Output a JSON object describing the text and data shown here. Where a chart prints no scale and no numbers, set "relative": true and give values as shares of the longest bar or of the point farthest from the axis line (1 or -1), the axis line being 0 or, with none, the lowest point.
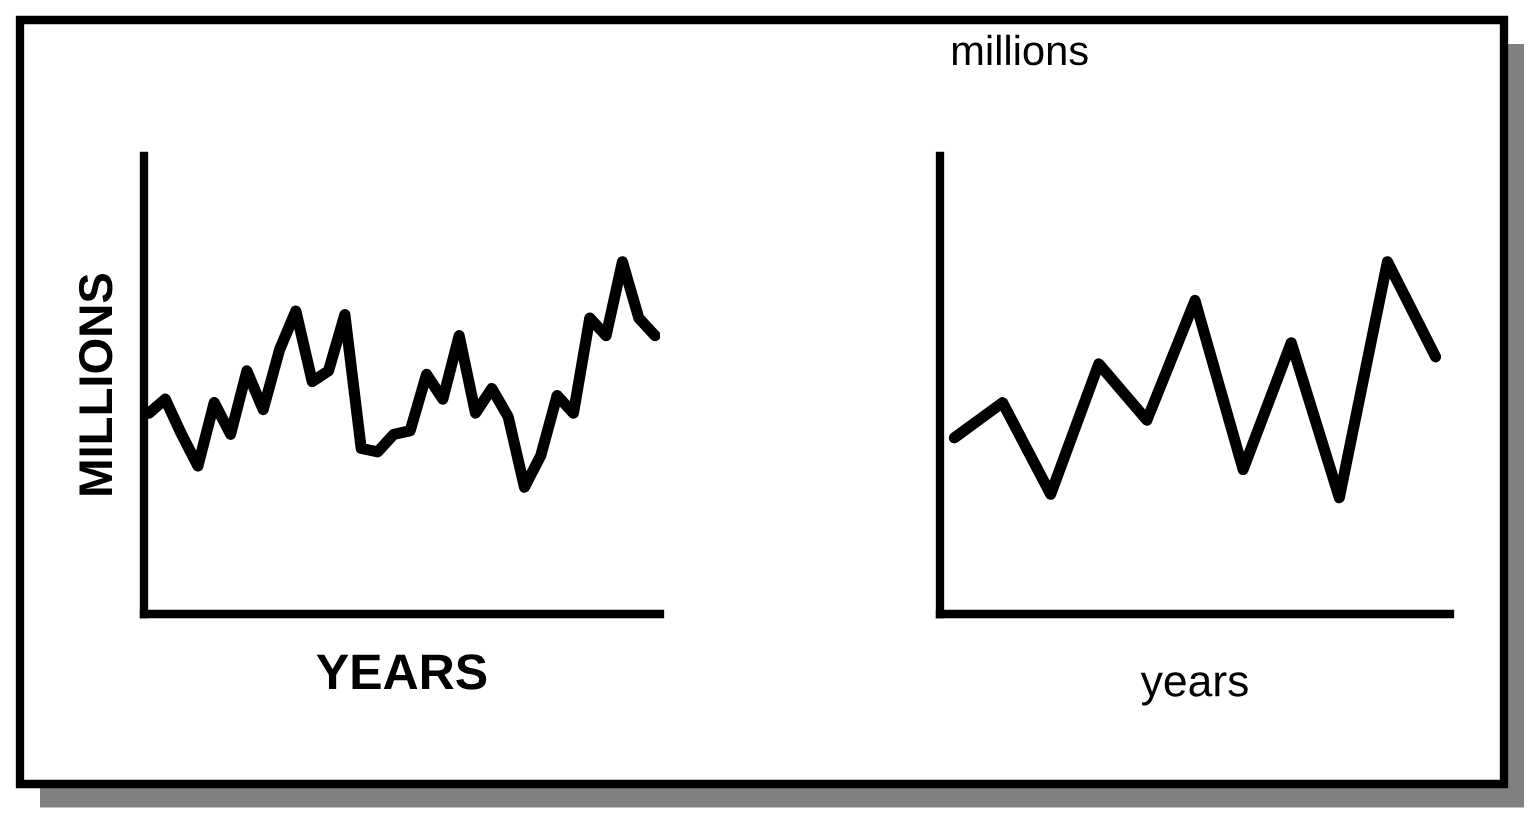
{
  "chart_data": [
    {
      "type": "line",
      "relative": true,
      "ylabel": "MILLIONS",
      "xlabel": "YEARS",
      "color": "#000000",
      "categories": [
        null,
        null,
        null,
        null,
        null,
        null,
        null,
        null,
        null,
        null,
        null,
        null,
        null,
        null,
        null,
        null,
        null,
        null,
        null,
        null,
        null,
        null,
        null,
        null,
        null,
        null,
        null,
        null,
        null,
        null,
        null,
        null
      ],
      "values": [
        0.57,
        0.61,
        0.51,
        0.42,
        0.6,
        0.51,
        0.69,
        0.58,
        0.75,
        0.86,
        0.66,
        0.69,
        0.85,
        0.47,
        0.46,
        0.51,
        0.52,
        0.68,
        0.61,
        0.79,
        0.57,
        0.64,
        0.56,
        0.36,
        0.45,
        0.62,
        0.57,
        0.84,
        0.79,
        1.0,
        0.84,
        0.79
      ]
    },
    {
      "type": "line",
      "relative": true,
      "ylabel": "millions",
      "xlabel": "years",
      "color": "#000000",
      "categories": [
        null,
        null,
        null,
        null,
        null,
        null,
        null,
        null,
        null,
        null,
        null
      ],
      "values": [
        0.5,
        0.6,
        0.34,
        0.71,
        0.55,
        0.89,
        0.41,
        0.77,
        0.33,
        1.0,
        0.73
      ]
    }
  ]
}
